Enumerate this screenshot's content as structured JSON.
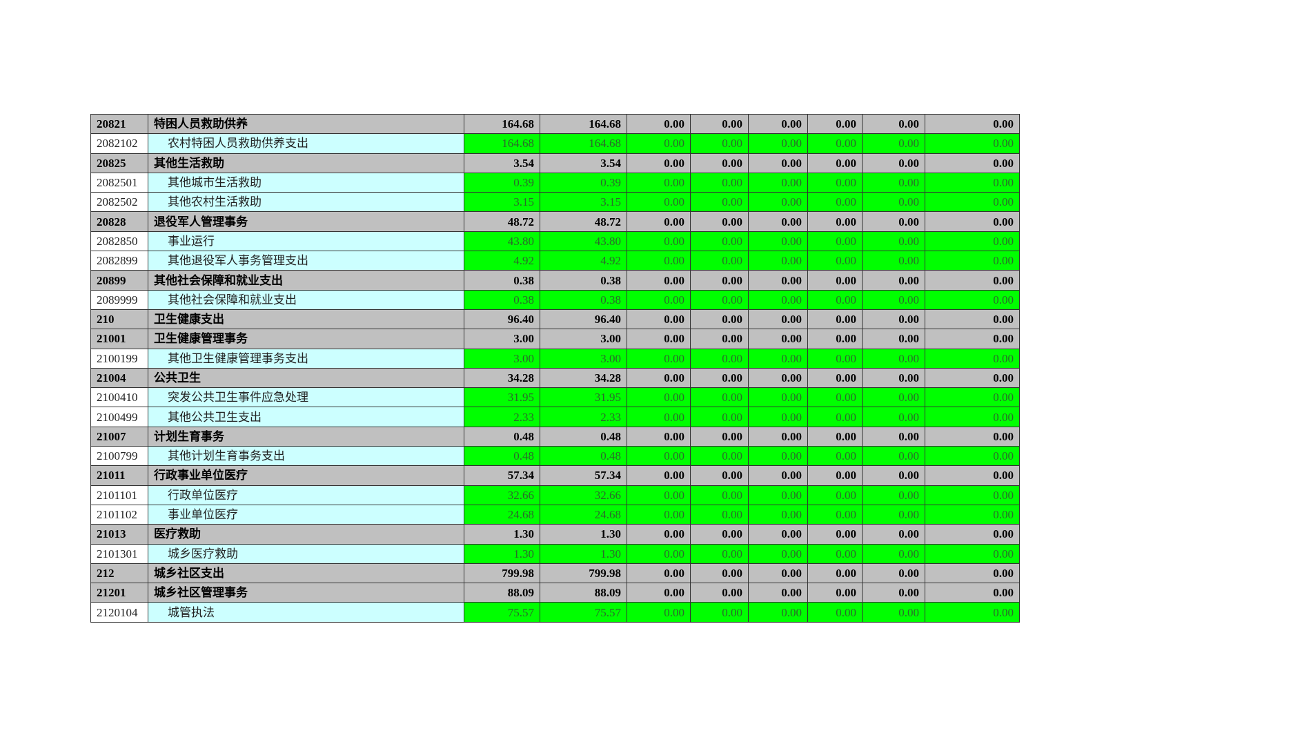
{
  "colors": {
    "group_bg": "#c0c0c0",
    "detail_name_bg": "#ccffff",
    "detail_value_bg": "#00ff00"
  },
  "rows": [
    {
      "code": "20821",
      "name": "特困人员救助供养",
      "level": 1,
      "values": [
        "164.68",
        "164.68",
        "0.00",
        "0.00",
        "0.00",
        "0.00",
        "0.00",
        "0.00"
      ]
    },
    {
      "code": "2082102",
      "name": "农村特困人员救助供养支出",
      "level": 2,
      "values": [
        "164.68",
        "164.68",
        "0.00",
        "0.00",
        "0.00",
        "0.00",
        "0.00",
        "0.00"
      ]
    },
    {
      "code": "20825",
      "name": "其他生活救助",
      "level": 1,
      "values": [
        "3.54",
        "3.54",
        "0.00",
        "0.00",
        "0.00",
        "0.00",
        "0.00",
        "0.00"
      ]
    },
    {
      "code": "2082501",
      "name": "其他城市生活救助",
      "level": 2,
      "values": [
        "0.39",
        "0.39",
        "0.00",
        "0.00",
        "0.00",
        "0.00",
        "0.00",
        "0.00"
      ]
    },
    {
      "code": "2082502",
      "name": "其他农村生活救助",
      "level": 2,
      "values": [
        "3.15",
        "3.15",
        "0.00",
        "0.00",
        "0.00",
        "0.00",
        "0.00",
        "0.00"
      ]
    },
    {
      "code": "20828",
      "name": "退役军人管理事务",
      "level": 1,
      "values": [
        "48.72",
        "48.72",
        "0.00",
        "0.00",
        "0.00",
        "0.00",
        "0.00",
        "0.00"
      ]
    },
    {
      "code": "2082850",
      "name": "事业运行",
      "level": 2,
      "values": [
        "43.80",
        "43.80",
        "0.00",
        "0.00",
        "0.00",
        "0.00",
        "0.00",
        "0.00"
      ]
    },
    {
      "code": "2082899",
      "name": "其他退役军人事务管理支出",
      "level": 2,
      "values": [
        "4.92",
        "4.92",
        "0.00",
        "0.00",
        "0.00",
        "0.00",
        "0.00",
        "0.00"
      ]
    },
    {
      "code": "20899",
      "name": "其他社会保障和就业支出",
      "level": 1,
      "values": [
        "0.38",
        "0.38",
        "0.00",
        "0.00",
        "0.00",
        "0.00",
        "0.00",
        "0.00"
      ]
    },
    {
      "code": "2089999",
      "name": "其他社会保障和就业支出",
      "level": 2,
      "values": [
        "0.38",
        "0.38",
        "0.00",
        "0.00",
        "0.00",
        "0.00",
        "0.00",
        "0.00"
      ]
    },
    {
      "code": "210",
      "name": "卫生健康支出",
      "level": 1,
      "values": [
        "96.40",
        "96.40",
        "0.00",
        "0.00",
        "0.00",
        "0.00",
        "0.00",
        "0.00"
      ]
    },
    {
      "code": "21001",
      "name": "卫生健康管理事务",
      "level": 1,
      "values": [
        "3.00",
        "3.00",
        "0.00",
        "0.00",
        "0.00",
        "0.00",
        "0.00",
        "0.00"
      ]
    },
    {
      "code": "2100199",
      "name": "其他卫生健康管理事务支出",
      "level": 2,
      "values": [
        "3.00",
        "3.00",
        "0.00",
        "0.00",
        "0.00",
        "0.00",
        "0.00",
        "0.00"
      ]
    },
    {
      "code": "21004",
      "name": "公共卫生",
      "level": 1,
      "values": [
        "34.28",
        "34.28",
        "0.00",
        "0.00",
        "0.00",
        "0.00",
        "0.00",
        "0.00"
      ]
    },
    {
      "code": "2100410",
      "name": "突发公共卫生事件应急处理",
      "level": 2,
      "values": [
        "31.95",
        "31.95",
        "0.00",
        "0.00",
        "0.00",
        "0.00",
        "0.00",
        "0.00"
      ]
    },
    {
      "code": "2100499",
      "name": "其他公共卫生支出",
      "level": 2,
      "values": [
        "2.33",
        "2.33",
        "0.00",
        "0.00",
        "0.00",
        "0.00",
        "0.00",
        "0.00"
      ]
    },
    {
      "code": "21007",
      "name": "计划生育事务",
      "level": 1,
      "values": [
        "0.48",
        "0.48",
        "0.00",
        "0.00",
        "0.00",
        "0.00",
        "0.00",
        "0.00"
      ]
    },
    {
      "code": "2100799",
      "name": "其他计划生育事务支出",
      "level": 2,
      "values": [
        "0.48",
        "0.48",
        "0.00",
        "0.00",
        "0.00",
        "0.00",
        "0.00",
        "0.00"
      ]
    },
    {
      "code": "21011",
      "name": "行政事业单位医疗",
      "level": 1,
      "values": [
        "57.34",
        "57.34",
        "0.00",
        "0.00",
        "0.00",
        "0.00",
        "0.00",
        "0.00"
      ]
    },
    {
      "code": "2101101",
      "name": "行政单位医疗",
      "level": 2,
      "values": [
        "32.66",
        "32.66",
        "0.00",
        "0.00",
        "0.00",
        "0.00",
        "0.00",
        "0.00"
      ]
    },
    {
      "code": "2101102",
      "name": "事业单位医疗",
      "level": 2,
      "values": [
        "24.68",
        "24.68",
        "0.00",
        "0.00",
        "0.00",
        "0.00",
        "0.00",
        "0.00"
      ]
    },
    {
      "code": "21013",
      "name": "医疗救助",
      "level": 1,
      "values": [
        "1.30",
        "1.30",
        "0.00",
        "0.00",
        "0.00",
        "0.00",
        "0.00",
        "0.00"
      ]
    },
    {
      "code": "2101301",
      "name": "城乡医疗救助",
      "level": 2,
      "values": [
        "1.30",
        "1.30",
        "0.00",
        "0.00",
        "0.00",
        "0.00",
        "0.00",
        "0.00"
      ]
    },
    {
      "code": "212",
      "name": "城乡社区支出",
      "level": 1,
      "values": [
        "799.98",
        "799.98",
        "0.00",
        "0.00",
        "0.00",
        "0.00",
        "0.00",
        "0.00"
      ]
    },
    {
      "code": "21201",
      "name": "城乡社区管理事务",
      "level": 1,
      "values": [
        "88.09",
        "88.09",
        "0.00",
        "0.00",
        "0.00",
        "0.00",
        "0.00",
        "0.00"
      ]
    },
    {
      "code": "2120104",
      "name": "城管执法",
      "level": 2,
      "values": [
        "75.57",
        "75.57",
        "0.00",
        "0.00",
        "0.00",
        "0.00",
        "0.00",
        "0.00"
      ]
    }
  ]
}
